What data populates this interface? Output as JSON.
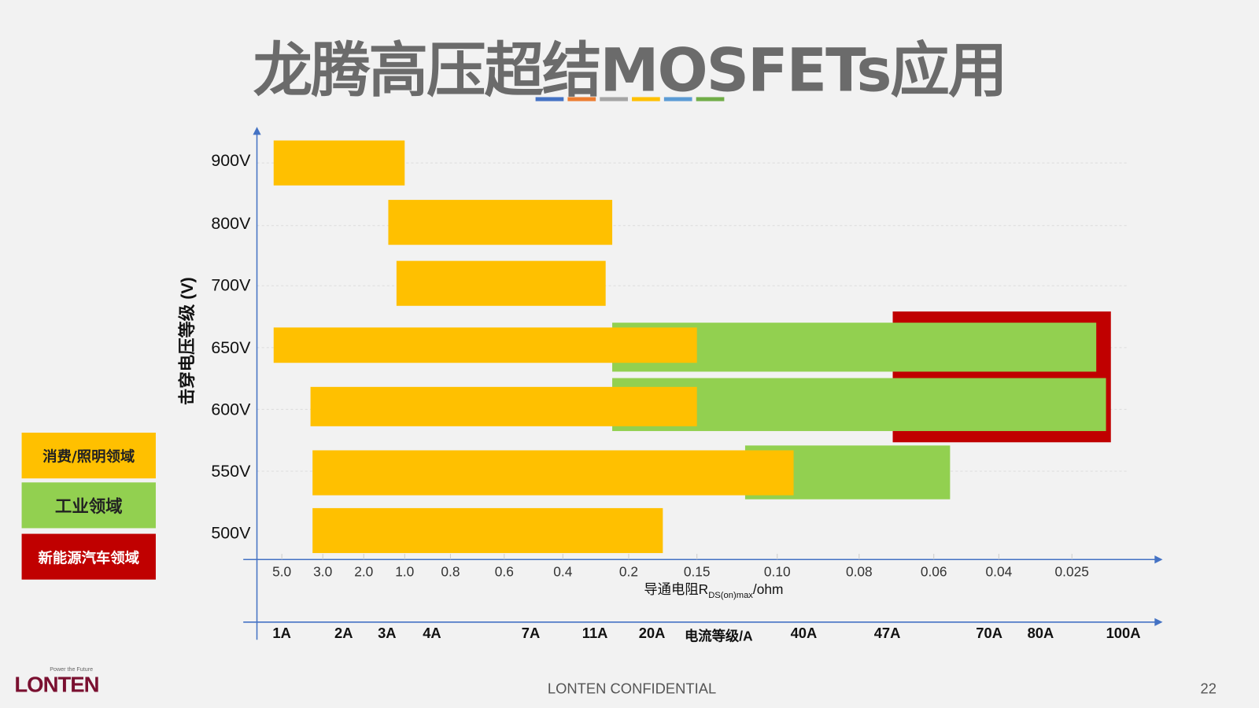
{
  "title": "龙腾高压超结MOSFETs应用",
  "title_strip_colors": [
    "#4472c4",
    "#ed7d31",
    "#a5a5a5",
    "#ffc000",
    "#5b9bd5",
    "#70ad47"
  ],
  "legend": [
    {
      "label": "消费/照明领域",
      "color": "#ffc000",
      "text_color": "#222222"
    },
    {
      "label": "工业领域",
      "color": "#92d050",
      "text_color": "#222222"
    },
    {
      "label": "新能源汽车领域",
      "color": "#c00000",
      "text_color": "#ffffff"
    }
  ],
  "footer": {
    "confidential": "LONTEN CONFIDENTIAL",
    "page": "22",
    "logo_text": "LONTEN",
    "logo_tagline": "Power the Future"
  },
  "chart_data": {
    "type": "bar",
    "orientation": "horizontal-range",
    "ylabel": "击穿电压等级 (V)",
    "y_categories": [
      "900V",
      "800V",
      "700V",
      "650V",
      "600V",
      "550V",
      "500V"
    ],
    "xlabel": "导通电阻R",
    "xlabel_sub": "DS(on)max",
    "xlabel_unit": "/ohm",
    "x_ticks": [
      "5.0",
      "3.0",
      "2.0",
      "1.0",
      "0.8",
      "0.6",
      "0.4",
      "0.2",
      "0.15",
      "0.10",
      "0.08",
      "0.06",
      "0.04",
      "0.025"
    ],
    "x2label": "电流等级/A",
    "x2_ticks": [
      "1A",
      "2A",
      "3A",
      "4A",
      "7A",
      "11A",
      "20A",
      "40A",
      "47A",
      "70A",
      "80A",
      "100A"
    ],
    "grid": true,
    "series": [
      {
        "name": "新能源汽车领域",
        "color": "#c00000",
        "bars": [
          {
            "voltage": "650V-600V",
            "rds_from": 0.071,
            "rds_to": 0.017
          }
        ]
      },
      {
        "name": "工业领域",
        "color": "#92d050",
        "bars": [
          {
            "voltage": "650V",
            "rds_from": 0.25,
            "rds_to": 0.02
          },
          {
            "voltage": "600V",
            "rds_from": 0.25,
            "rds_to": 0.018
          },
          {
            "voltage": "550V",
            "rds_from": 0.12,
            "rds_to": 0.055
          }
        ]
      },
      {
        "name": "消费/照明领域",
        "color": "#ffc000",
        "bars": [
          {
            "voltage": "900V",
            "rds_from": 5.4,
            "rds_to": 1.0
          },
          {
            "voltage": "800V",
            "rds_from": 1.4,
            "rds_to": 0.25
          },
          {
            "voltage": "700V",
            "rds_from": 1.2,
            "rds_to": 0.27
          },
          {
            "voltage": "650V",
            "rds_from": 5.4,
            "rds_to": 0.15
          },
          {
            "voltage": "600V",
            "rds_from": 3.6,
            "rds_to": 0.15
          },
          {
            "voltage": "550V",
            "rds_from": 3.5,
            "rds_to": 0.096
          },
          {
            "voltage": "500V",
            "rds_from": 3.5,
            "rds_to": 0.175
          }
        ]
      }
    ]
  }
}
